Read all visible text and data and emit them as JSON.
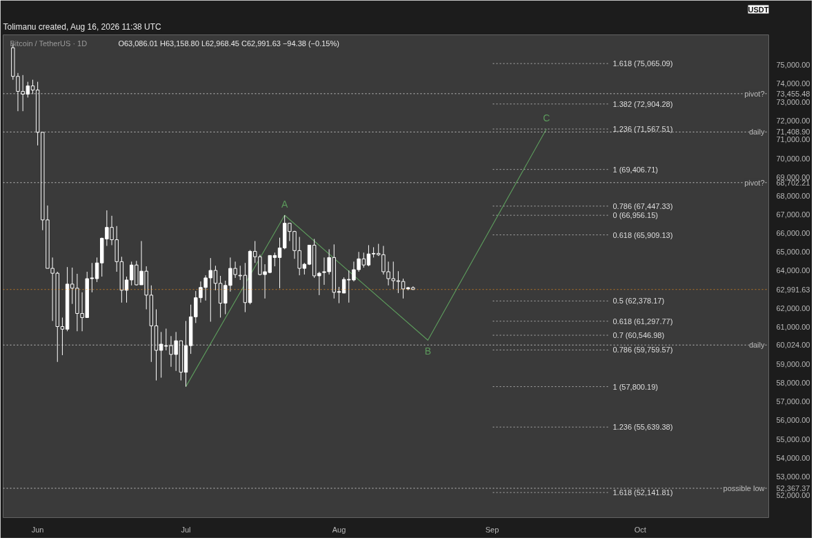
{
  "chart_data": {
    "type": "candlestick",
    "title": "Bitcoin / TetherUS · 1D",
    "subtitle": "O63,086.01 H63,158.80 L62,968.45 C62,991.63 −94.38 (−0.15%)",
    "ylabel": "USDT",
    "x": [
      "2026-05-27",
      "2026-05-28",
      "2026-05-29",
      "2026-05-30",
      "2026-05-31",
      "2026-06-01",
      "2026-06-02",
      "2026-06-03",
      "2026-06-04",
      "2026-06-05",
      "2026-06-06",
      "2026-06-07",
      "2026-06-08",
      "2026-06-09",
      "2026-06-10",
      "2026-06-11",
      "2026-06-12",
      "2026-06-13",
      "2026-06-14",
      "2026-06-15",
      "2026-06-16",
      "2026-06-17",
      "2026-06-18",
      "2026-06-19",
      "2026-06-20",
      "2026-06-21",
      "2026-06-22",
      "2026-06-23",
      "2026-06-24",
      "2026-06-25",
      "2026-06-26",
      "2026-06-27",
      "2026-06-28",
      "2026-06-29",
      "2026-06-30",
      "2026-07-01",
      "2026-07-02",
      "2026-07-03",
      "2026-07-04",
      "2026-07-05",
      "2026-07-06",
      "2026-07-07",
      "2026-07-08",
      "2026-07-09",
      "2026-07-10",
      "2026-07-11",
      "2026-07-12",
      "2026-07-13",
      "2026-07-14",
      "2026-07-15",
      "2026-07-16",
      "2026-07-17",
      "2026-07-18",
      "2026-07-19",
      "2026-07-20",
      "2026-07-21",
      "2026-07-22",
      "2026-07-23",
      "2026-07-24",
      "2026-07-25",
      "2026-07-26",
      "2026-07-27",
      "2026-07-28",
      "2026-07-29",
      "2026-07-30",
      "2026-07-31",
      "2026-08-01",
      "2026-08-02",
      "2026-08-03",
      "2026-08-04",
      "2026-08-05",
      "2026-08-06",
      "2026-08-07",
      "2026-08-08",
      "2026-08-09",
      "2026-08-10",
      "2026-08-11",
      "2026-08-12",
      "2026-08-13",
      "2026-08-14",
      "2026-08-15",
      "2026-08-16"
    ],
    "ohlc": [
      [
        75910,
        76100,
        74200,
        74380
      ],
      [
        74380,
        74560,
        72520,
        73580
      ],
      [
        73580,
        74450,
        72520,
        73430
      ],
      [
        73430,
        74090,
        73250,
        73870
      ],
      [
        73870,
        74200,
        73430,
        73650
      ],
      [
        73650,
        74090,
        70690,
        71390
      ],
      [
        71390,
        71390,
        66160,
        66710
      ],
      [
        66710,
        67480,
        64120,
        64120
      ],
      [
        64120,
        64700,
        61310,
        63860
      ],
      [
        63860,
        63940,
        59120,
        61010
      ],
      [
        61010,
        61490,
        59480,
        60870
      ],
      [
        60870,
        64190,
        60760,
        63280
      ],
      [
        63280,
        64160,
        62220,
        63060
      ],
      [
        63060,
        63830,
        60760,
        61710
      ],
      [
        61710,
        62840,
        60760,
        61490
      ],
      [
        61490,
        63940,
        61490,
        63570
      ],
      [
        63570,
        64410,
        62840,
        63610
      ],
      [
        63570,
        64700,
        63390,
        64410
      ],
      [
        64410,
        65760,
        63680,
        65730
      ],
      [
        65690,
        67220,
        65320,
        66310
      ],
      [
        66310,
        66930,
        65360,
        65650
      ],
      [
        65650,
        66380,
        63940,
        64480
      ],
      [
        64480,
        64740,
        62290,
        62950
      ],
      [
        62950,
        63680,
        62290,
        63500
      ],
      [
        63500,
        64480,
        63210,
        64300
      ],
      [
        64300,
        64520,
        63210,
        63240
      ],
      [
        63240,
        65580,
        63240,
        63970
      ],
      [
        63970,
        64230,
        61930,
        62690
      ],
      [
        62690,
        63210,
        59120,
        61050
      ],
      [
        61050,
        61930,
        58130,
        59740
      ],
      [
        59740,
        60720,
        58280,
        60070
      ],
      [
        59960,
        60900,
        59740,
        59990
      ],
      [
        59990,
        60500,
        58860,
        59520
      ],
      [
        59520,
        60720,
        58640,
        60250
      ],
      [
        60250,
        60250,
        58130,
        58570
      ],
      [
        58570,
        61310,
        57800,
        59990
      ],
      [
        59990,
        62180,
        59550,
        61530
      ],
      [
        61530,
        62910,
        61200,
        62550
      ],
      [
        62550,
        63420,
        62290,
        63100
      ],
      [
        63100,
        63750,
        62400,
        63610
      ],
      [
        63610,
        64670,
        61270,
        64010
      ],
      [
        64010,
        64260,
        62950,
        63320
      ],
      [
        63320,
        63720,
        61490,
        62260
      ],
      [
        62260,
        63460,
        61670,
        63210
      ],
      [
        63210,
        64700,
        62880,
        64120
      ],
      [
        64120,
        64480,
        63610,
        63790
      ],
      [
        63750,
        64260,
        63500,
        63720
      ],
      [
        63750,
        64410,
        61780,
        62290
      ],
      [
        62290,
        65100,
        62200,
        65030
      ],
      [
        65030,
        65580,
        64410,
        64740
      ],
      [
        64740,
        64850,
        63750,
        63790
      ],
      [
        63790,
        64340,
        62510,
        63940
      ],
      [
        63900,
        64810,
        63860,
        64810
      ],
      [
        64700,
        64960,
        64230,
        64810
      ],
      [
        64700,
        65760,
        63060,
        65210
      ],
      [
        65210,
        66956,
        65140,
        66530
      ],
      [
        66530,
        66530,
        65580,
        66090
      ],
      [
        66090,
        66130,
        64630,
        65070
      ],
      [
        65070,
        65800,
        63750,
        64120
      ],
      [
        64120,
        64410,
        63790,
        64340
      ],
      [
        64340,
        65360,
        64300,
        65360
      ],
      [
        65360,
        65690,
        63610,
        63720
      ],
      [
        63720,
        63940,
        62690,
        63860
      ],
      [
        63900,
        64700,
        63240,
        63940
      ],
      [
        63940,
        65140,
        63790,
        64700
      ],
      [
        64700,
        65400,
        62510,
        62840
      ],
      [
        62840,
        63130,
        62260,
        62880
      ],
      [
        62800,
        63640,
        62800,
        63530
      ],
      [
        63500,
        64010,
        62290,
        63530
      ],
      [
        63500,
        64480,
        63420,
        64050
      ],
      [
        64050,
        65000,
        63940,
        64630
      ],
      [
        64630,
        64960,
        64160,
        64300
      ],
      [
        64300,
        65360,
        64230,
        64890
      ],
      [
        64890,
        65250,
        64700,
        64920
      ],
      [
        64920,
        65430,
        64780,
        64850
      ],
      [
        64850,
        65320,
        63790,
        63940
      ],
      [
        63940,
        64480,
        63210,
        63570
      ],
      [
        63570,
        64480,
        63020,
        63460
      ],
      [
        63460,
        63970,
        62800,
        63420
      ],
      [
        63420,
        63570,
        62510,
        63020
      ],
      [
        63020,
        63130,
        62950,
        63090
      ],
      [
        63086.01,
        63158.8,
        62968.45,
        62991.63
      ]
    ],
    "series": [
      {
        "type": "line",
        "color": "#5c9a5c",
        "x": [
          "2026-07-01",
          "2026-07-21",
          "2026-08-19",
          "2026-09-12"
        ],
        "values": [
          57800,
          66960,
          60280,
          71570
        ],
        "value_labels": [
          null,
          "A",
          "B",
          "C"
        ]
      }
    ],
    "xlim": [
      "2026-05-25",
      "2026-10-27"
    ],
    "ylim": [
      50800,
      76600
    ],
    "xticks": [
      {
        "value": "2026-06-01",
        "label": "Jun"
      },
      {
        "value": "2026-07-01",
        "label": "Jul"
      },
      {
        "value": "2026-08-01",
        "label": "Aug"
      },
      {
        "value": "2026-09-01",
        "label": "Sep"
      },
      {
        "value": "2026-10-01",
        "label": "Oct"
      }
    ],
    "yticks": [
      {
        "value": 52000,
        "label": "52,000.00"
      },
      {
        "value": 53000,
        "label": "53,000.00"
      },
      {
        "value": 54000,
        "label": "54,000.00"
      },
      {
        "value": 55000,
        "label": "55,000.00"
      },
      {
        "value": 56000,
        "label": "56,000.00"
      },
      {
        "value": 57000,
        "label": "57,000.00"
      },
      {
        "value": 58000,
        "label": "58,000.00"
      },
      {
        "value": 59000,
        "label": "59,000.00"
      },
      {
        "value": 61000,
        "label": "61,000.00"
      },
      {
        "value": 62000,
        "label": "62,000.00"
      },
      {
        "value": 64000,
        "label": "64,000.00"
      },
      {
        "value": 65000,
        "label": "65,000.00"
      },
      {
        "value": 66000,
        "label": "66,000.00"
      },
      {
        "value": 67000,
        "label": "67,000.00"
      },
      {
        "value": 68000,
        "label": "68,000.00"
      },
      {
        "value": 69000,
        "label": "69,000.00"
      },
      {
        "value": 70000,
        "label": "70,000.00"
      },
      {
        "value": 71000,
        "label": "71,000.00"
      },
      {
        "value": 72000,
        "label": "72,000.00"
      },
      {
        "value": 73000,
        "label": "73,000.00"
      },
      {
        "value": 74000,
        "label": "74,000.00"
      },
      {
        "value": 75000,
        "label": "75,000.00"
      },
      {
        "value": 73455.48,
        "label": "73,455.48"
      },
      {
        "value": 71408.9,
        "label": "71,408.90"
      },
      {
        "value": 68702.21,
        "label": "68,702.21"
      },
      {
        "value": 62991.63,
        "label": "62,991.63"
      },
      {
        "value": 60024.0,
        "label": "60,024.00"
      },
      {
        "value": 52367.37,
        "label": "52,367.37"
      }
    ],
    "ref_lines": [
      {
        "axis": "y",
        "value": 73455.48,
        "label": "pivot?",
        "color": "#ffffff",
        "line_style": "dotted"
      },
      {
        "axis": "y",
        "value": 71408.9,
        "label": "daily",
        "color": "#ffffff",
        "line_style": "dotted"
      },
      {
        "axis": "y",
        "value": 68702.21,
        "label": "pivot?",
        "color": "#ffffff",
        "line_style": "dotted"
      },
      {
        "axis": "y",
        "value": 62991.63,
        "color": "#f7931a",
        "line_style": "dotted"
      },
      {
        "axis": "y",
        "value": 60024.0,
        "label": "daily",
        "color": "#ffffff",
        "line_style": "dotted"
      },
      {
        "axis": "y",
        "value": 52367.37,
        "label": "possible low",
        "color": "#ffffff",
        "line_style": "dotted"
      },
      {
        "axis": "y",
        "value": 75065.09,
        "label": "1.618 (75,065.09)",
        "color": "#cccccc",
        "line_style": "dotted"
      },
      {
        "axis": "y",
        "value": 72904.28,
        "label": "1.382 (72,904.28)",
        "color": "#cccccc",
        "line_style": "dotted"
      },
      {
        "axis": "y",
        "value": 71567.51,
        "label": "1.236 (71,567.51)",
        "color": "#cccccc",
        "line_style": "dotted"
      },
      {
        "axis": "y",
        "value": 69406.71,
        "label": "1 (69,406.71)",
        "color": "#cccccc",
        "line_style": "dotted"
      },
      {
        "axis": "y",
        "value": 67447.33,
        "label": "0.786 (67,447.33)",
        "color": "#cccccc",
        "line_style": "dotted"
      },
      {
        "axis": "y",
        "value": 65909.13,
        "label": "0.618 (65,909.13)",
        "color": "#cccccc",
        "line_style": "dotted"
      },
      {
        "axis": "y",
        "value": 66956.15,
        "label": "0 (66,956.15)",
        "color": "#cccccc",
        "line_style": "dotted"
      },
      {
        "axis": "y",
        "value": 62378.17,
        "label": "0.5 (62,378.17)",
        "color": "#cccccc",
        "line_style": "dotted"
      },
      {
        "axis": "y",
        "value": 61297.77,
        "label": "0.618 (61,297.77)",
        "color": "#cccccc",
        "line_style": "dotted"
      },
      {
        "axis": "y",
        "value": 60546.98,
        "label": "0.7 (60,546.98)",
        "color": "#cccccc",
        "line_style": "dotted"
      },
      {
        "axis": "y",
        "value": 59759.57,
        "label": "0.786 (59,759.57)",
        "color": "#cccccc",
        "line_style": "dotted"
      },
      {
        "axis": "y",
        "value": 57800.19,
        "label": "1 (57,800.19)",
        "color": "#cccccc",
        "line_style": "dotted"
      },
      {
        "axis": "y",
        "value": 55639.38,
        "label": "1.236 (55,639.38)",
        "color": "#cccccc",
        "line_style": "dotted"
      },
      {
        "axis": "y",
        "value": 52141.81,
        "label": "1.618 (52,141.81)",
        "color": "#cccccc",
        "line_style": "dotted"
      }
    ],
    "annotations": [
      "Tolimanu created, Aug 16, 2026 11:38 UTC"
    ]
  }
}
